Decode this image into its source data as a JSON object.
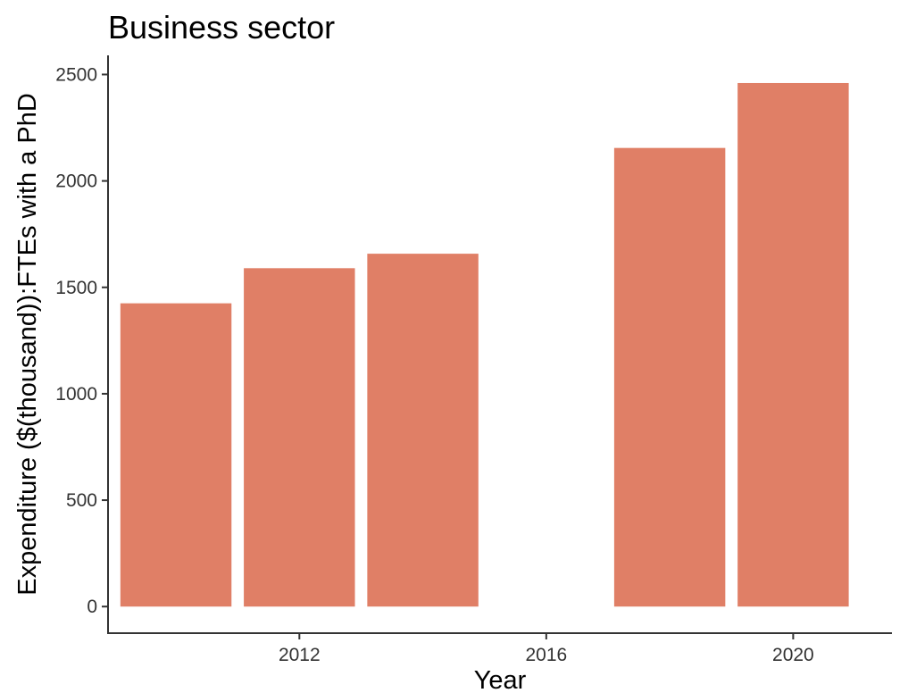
{
  "chart_data": {
    "type": "bar",
    "title": "Business sector",
    "xlabel": "Year",
    "ylabel": "Expenditure ($(thousand)):FTEs with a PhD",
    "x": [
      2010,
      2012,
      2014,
      2018,
      2020
    ],
    "values": [
      1425,
      1590,
      1658,
      2155,
      2460
    ],
    "xlim": [
      2008.9,
      2021.6
    ],
    "ylim": [
      -125,
      2590
    ],
    "xticks": [
      2012,
      2016,
      2020
    ],
    "yticks": [
      0,
      500,
      1000,
      1500,
      2000,
      2500
    ],
    "bar_width_years": 1.8,
    "grid": false,
    "legend": "none",
    "bar_color": "#e07f66"
  }
}
